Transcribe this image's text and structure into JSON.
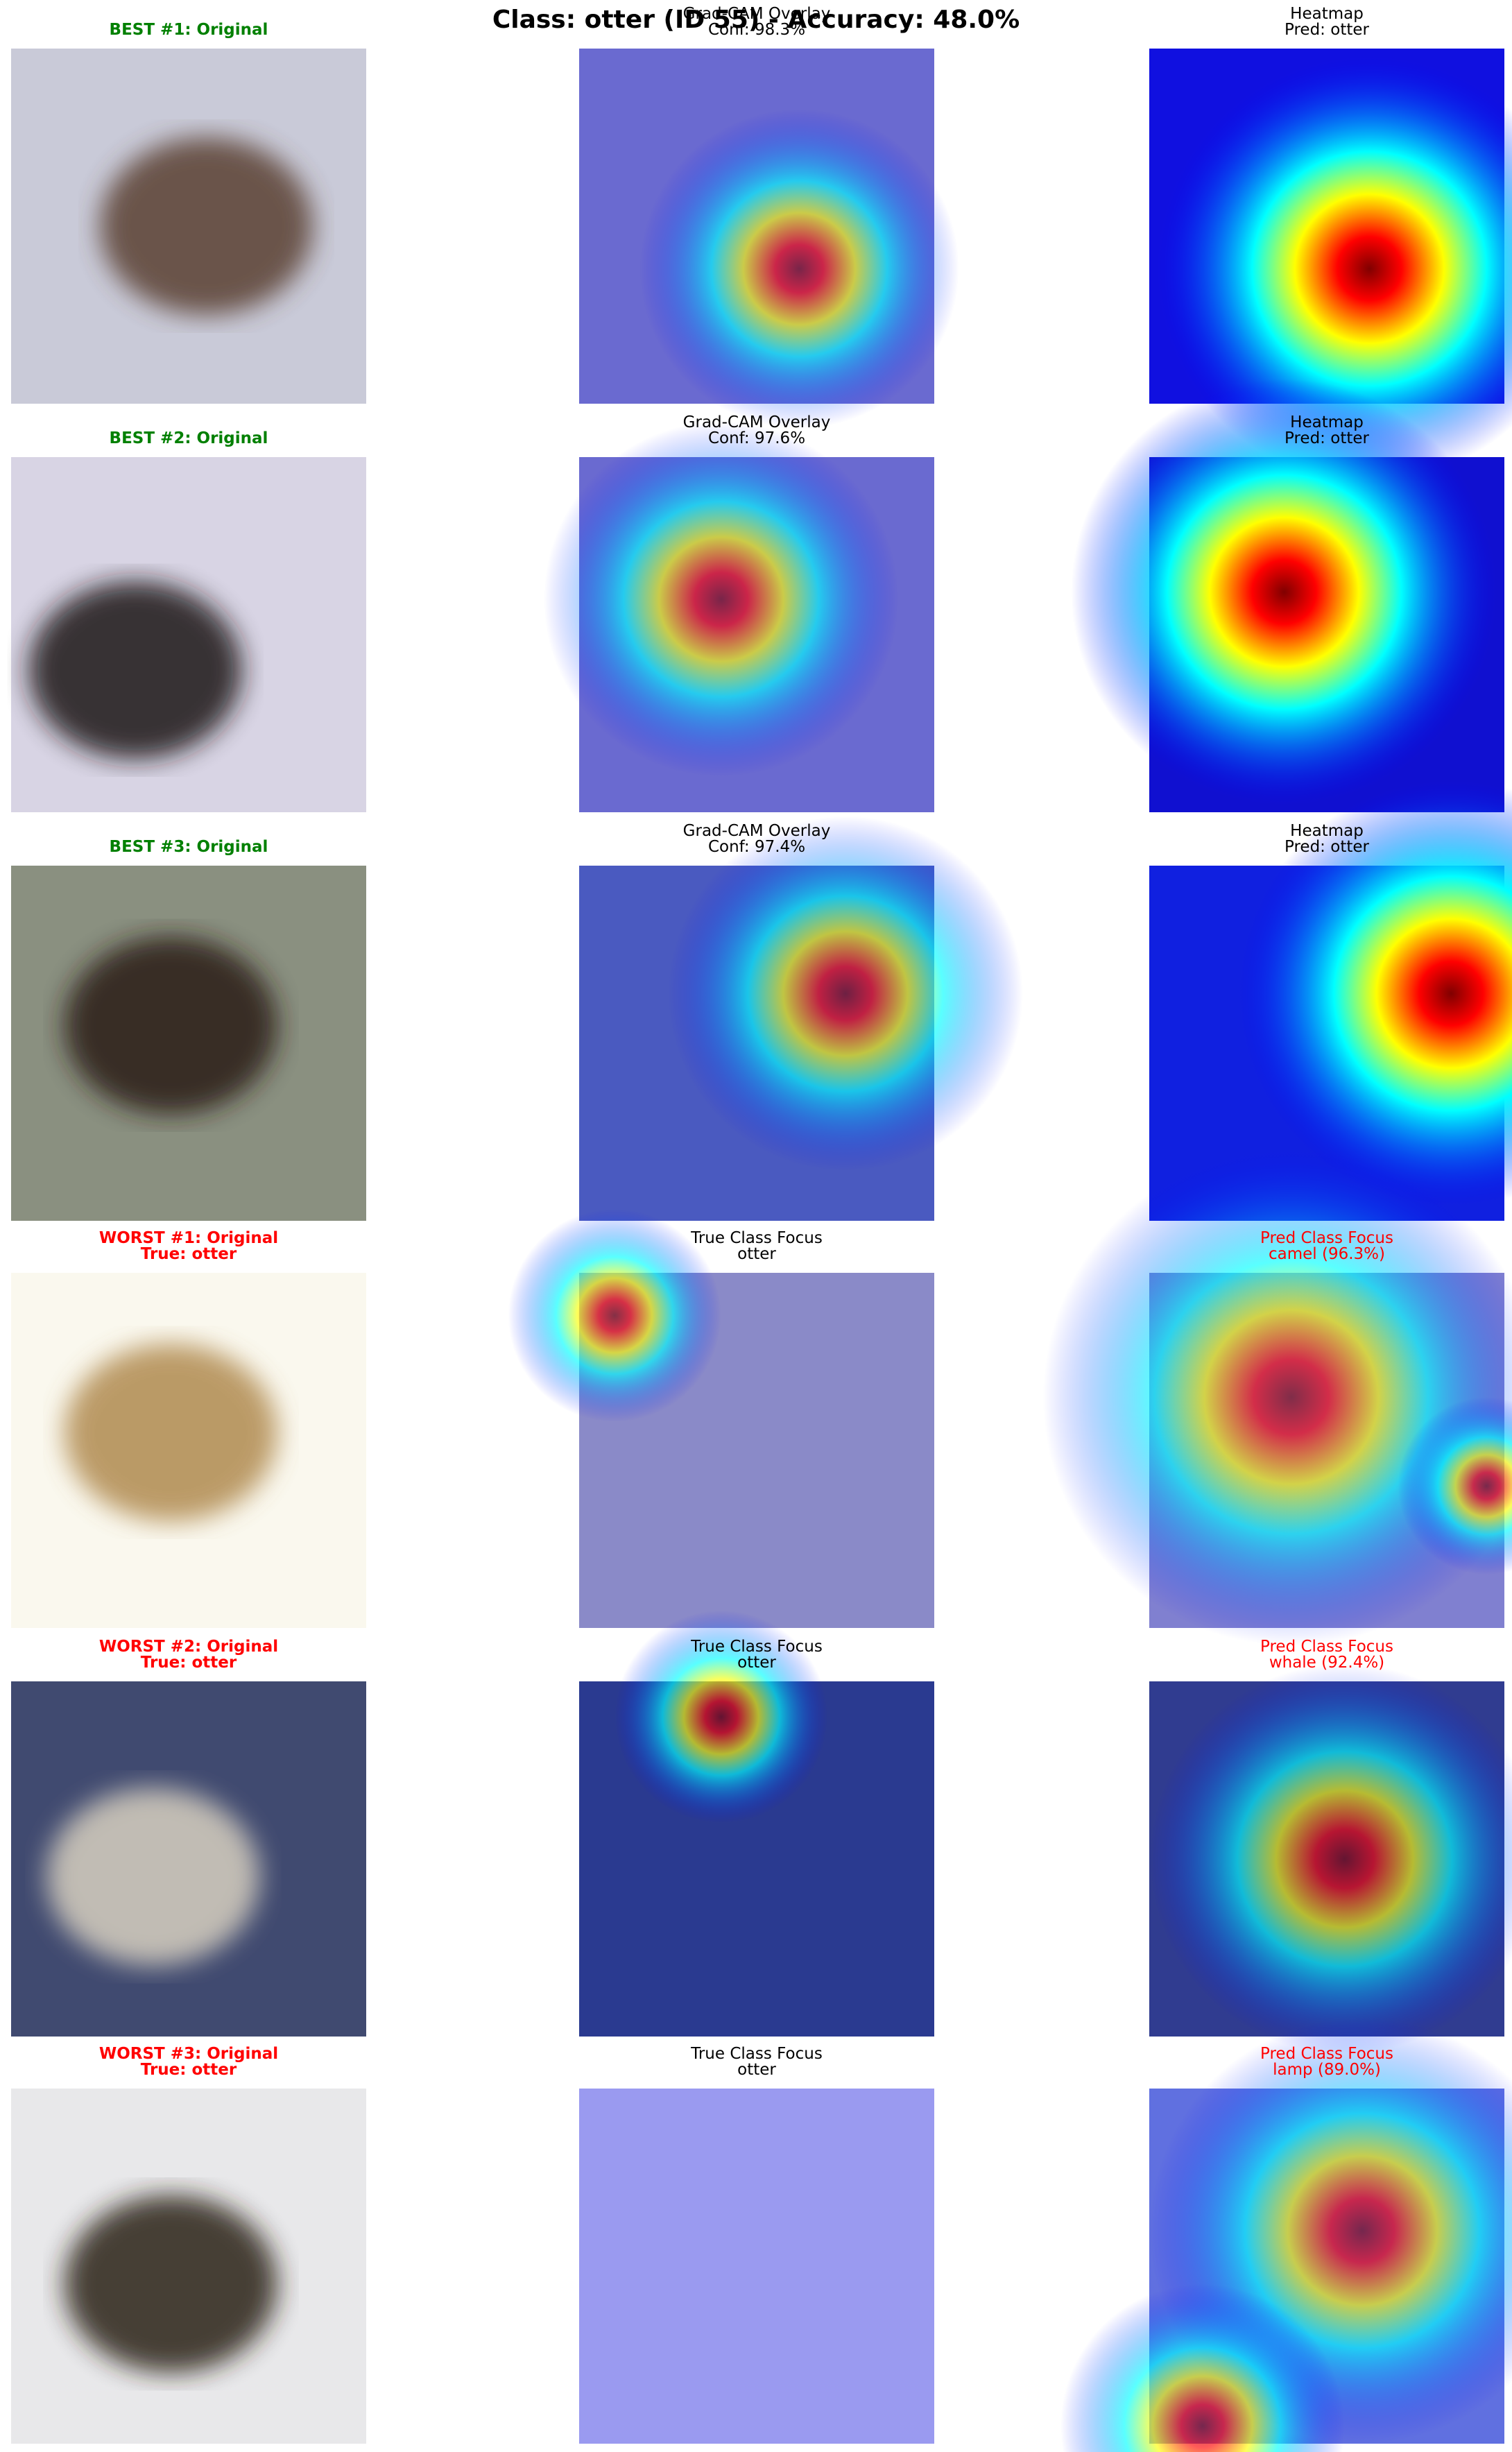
{
  "title": "Class: otter (ID 55) - Accuracy: 48.0%",
  "rows": [
    [
      {
        "lines": [
          "BEST #1: Original"
        ],
        "color": "green",
        "bold": true
      },
      {
        "lines": [
          "Grad-CAM Overlay",
          "Conf: 98.3%"
        ],
        "color": "black",
        "bold": false
      },
      {
        "lines": [
          "Heatmap",
          "Pred: otter"
        ],
        "color": "black",
        "bold": false
      }
    ],
    [
      {
        "lines": [
          "BEST #2: Original"
        ],
        "color": "green",
        "bold": true
      },
      {
        "lines": [
          "Grad-CAM Overlay",
          "Conf: 97.6%"
        ],
        "color": "black",
        "bold": false
      },
      {
        "lines": [
          "Heatmap",
          "Pred: otter"
        ],
        "color": "black",
        "bold": false
      }
    ],
    [
      {
        "lines": [
          "BEST #3: Original"
        ],
        "color": "green",
        "bold": true
      },
      {
        "lines": [
          "Grad-CAM Overlay",
          "Conf: 97.4%"
        ],
        "color": "black",
        "bold": false
      },
      {
        "lines": [
          "Heatmap",
          "Pred: otter"
        ],
        "color": "black",
        "bold": false
      }
    ],
    [
      {
        "lines": [
          "WORST #1: Original",
          "True: otter"
        ],
        "color": "red",
        "bold": true
      },
      {
        "lines": [
          "True Class Focus",
          "otter"
        ],
        "color": "black",
        "bold": false
      },
      {
        "lines": [
          "Pred Class Focus",
          "camel (96.3%)"
        ],
        "color": "red",
        "bold": false
      }
    ],
    [
      {
        "lines": [
          "WORST #2: Original",
          "True: otter"
        ],
        "color": "red",
        "bold": true
      },
      {
        "lines": [
          "True Class Focus",
          "otter"
        ],
        "color": "black",
        "bold": false
      },
      {
        "lines": [
          "Pred Class Focus",
          "whale (92.4%)"
        ],
        "color": "red",
        "bold": false
      }
    ],
    [
      {
        "lines": [
          "WORST #3: Original",
          "True: otter"
        ],
        "color": "red",
        "bold": true
      },
      {
        "lines": [
          "True Class Focus",
          "otter"
        ],
        "color": "black",
        "bold": false
      },
      {
        "lines": [
          "Pred Class Focus",
          "lamp (89.0%)"
        ],
        "color": "red",
        "bold": false
      }
    ]
  ]
}
